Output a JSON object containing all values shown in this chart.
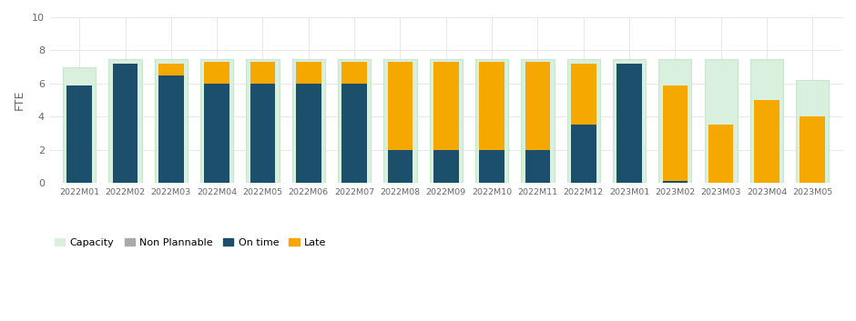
{
  "months": [
    "2022M01",
    "2022M02",
    "2022M03",
    "2022M04",
    "2022M05",
    "2022M06",
    "2022M07",
    "2022M08",
    "2022M09",
    "2022M10",
    "2022M11",
    "2022M12",
    "2023M01",
    "2023M02",
    "2023M03",
    "2023M04",
    "2023M05"
  ],
  "capacity": [
    7.0,
    7.5,
    7.5,
    7.5,
    7.5,
    7.5,
    7.5,
    7.5,
    7.5,
    7.5,
    7.5,
    7.5,
    7.5,
    7.5,
    7.5,
    7.5,
    6.2
  ],
  "on_time": [
    5.9,
    7.2,
    6.5,
    6.0,
    6.0,
    6.0,
    6.0,
    2.0,
    2.0,
    2.0,
    2.0,
    3.5,
    7.2,
    0.1,
    0.0,
    0.0,
    0.0
  ],
  "late": [
    0.0,
    0.0,
    0.7,
    1.3,
    1.3,
    1.3,
    1.3,
    5.3,
    5.3,
    5.3,
    5.3,
    3.7,
    0.0,
    5.8,
    3.5,
    5.0,
    4.0
  ],
  "color_capacity": "#daf0de",
  "color_capacity_border": "#c5e8cb",
  "color_on_time": "#1b4f6b",
  "color_late": "#f5a800",
  "color_background": "#ffffff",
  "color_grid": "#e8e8e8",
  "ylabel": "FTE",
  "ylim": [
    0,
    10
  ],
  "yticks": [
    0,
    2,
    4,
    6,
    8,
    10
  ],
  "legend_labels": [
    "Capacity",
    "Non Plannable",
    "On time",
    "Late"
  ],
  "legend_colors": [
    "#daf0de",
    "#aaaaaa",
    "#1b4f6b",
    "#f5a800"
  ],
  "bar_width": 0.55,
  "capacity_bar_width": 0.72
}
